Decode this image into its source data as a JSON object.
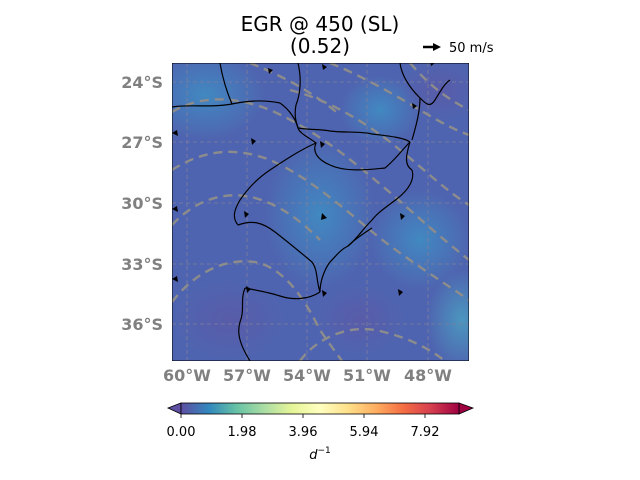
{
  "title": {
    "line1": "EGR @ 450 (SL)",
    "line2": "(0.52)"
  },
  "wind_reference": {
    "label": "50 m/s"
  },
  "map": {
    "lat_labels": [
      "24°S",
      "27°S",
      "30°S",
      "33°S",
      "36°S"
    ],
    "lon_labels": [
      "60°W",
      "57°W",
      "54°W",
      "51°W",
      "48°W"
    ],
    "colormap": "Spectral_r",
    "gridlines": true,
    "contour_color": "#8c8c8c"
  },
  "colorbar": {
    "ticks": [
      "0.00",
      "1.98",
      "3.96",
      "5.94",
      "7.92"
    ],
    "unit_base": "d",
    "unit_exp": "−1",
    "extend": "both",
    "colors": [
      "#5e4fa2",
      "#3288bd",
      "#66c2a5",
      "#abdda4",
      "#e6f598",
      "#ffffbf",
      "#fee08b",
      "#fdae61",
      "#f46d43",
      "#d53e4f",
      "#9e0142"
    ]
  }
}
